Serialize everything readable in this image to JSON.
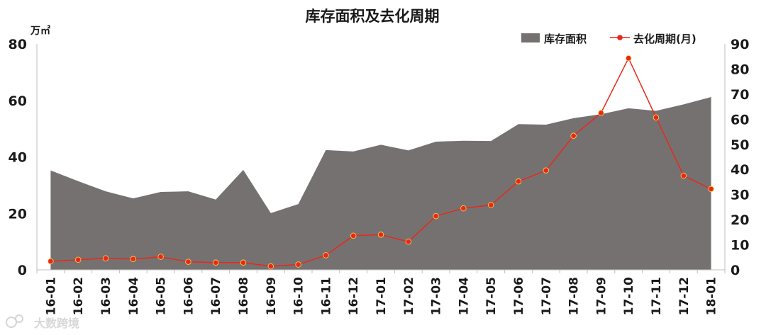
{
  "chart_data": {
    "type": "area",
    "title": "库存面积及去化周期",
    "y_left_unit": "万㎡",
    "categories": [
      "16-01",
      "16-02",
      "16-03",
      "16-04",
      "16-05",
      "16-06",
      "16-07",
      "16-08",
      "16-09",
      "16-10",
      "16-11",
      "16-12",
      "17-01",
      "17-02",
      "17-03",
      "17-04",
      "17-05",
      "17-06",
      "17-07",
      "17-08",
      "17-09",
      "17-10",
      "17-11",
      "17-12",
      "18-01"
    ],
    "ylim_left": [
      0,
      80
    ],
    "yticks_left": [
      0,
      20,
      40,
      60,
      80
    ],
    "ylim_right": [
      0,
      90
    ],
    "yticks_right": [
      0,
      10,
      20,
      30,
      40,
      50,
      60,
      70,
      80,
      90
    ],
    "grid": false,
    "legend_position": "top-right",
    "series": [
      {
        "name": "库存面积",
        "type": "area",
        "axis": "left",
        "color": "#767171",
        "values": [
          35.2,
          31.4,
          27.8,
          25.3,
          27.6,
          27.8,
          24.9,
          35.4,
          20.1,
          23.3,
          42.4,
          41.9,
          44.3,
          42.3,
          45.4,
          45.7,
          45.6,
          51.6,
          51.4,
          53.7,
          55.1,
          57.2,
          56.3,
          58.6,
          61.2
        ]
      },
      {
        "name": "去化周期(月)",
        "type": "line",
        "axis": "right",
        "color": "#e8281b",
        "values": [
          3.4,
          4.0,
          4.6,
          4.3,
          5.2,
          3.2,
          2.9,
          2.9,
          1.4,
          2.1,
          5.8,
          13.6,
          14.0,
          11.2,
          21.4,
          24.5,
          25.8,
          35.2,
          39.6,
          53.4,
          62.5,
          84.3,
          60.7,
          37.5,
          32.2
        ]
      }
    ]
  },
  "watermark": "大数跨境"
}
